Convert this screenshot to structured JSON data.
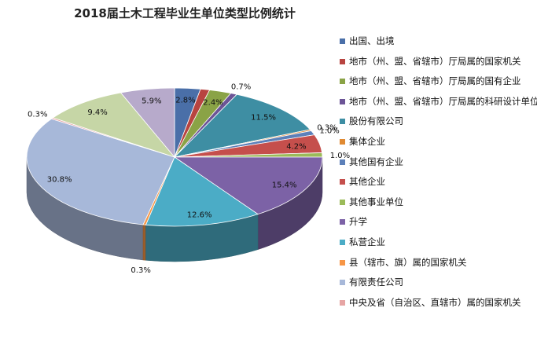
{
  "chart_data": {
    "type": "pie",
    "title": "2018届土木工程毕业生单位类型比例统计",
    "legend_position": "right",
    "slices": [
      {
        "name": "出国、出境",
        "value": 2.8,
        "label": "2.8%",
        "color": "#4a6fa8"
      },
      {
        "name": "地市（州、盟、省辖市）厅局属的国家机关",
        "value": 1.0,
        "label": "",
        "color": "#b84440"
      },
      {
        "name": "地市（州、盟、省辖市）厅局属的国有企业",
        "value": 2.4,
        "label": "2.4%",
        "color": "#8aa346"
      },
      {
        "name": "地市（州、盟、省辖市）厅局属的科研设计单位",
        "value": 0.7,
        "label": "0.7%",
        "color": "#6c5496"
      },
      {
        "name": "股份有限公司",
        "value": 11.5,
        "label": "11.5%",
        "color": "#3e8ea3"
      },
      {
        "name": "集体企业",
        "value": 0.3,
        "label": "0.3%",
        "color": "#e08a32"
      },
      {
        "name": "其他国有企业",
        "value": 1.0,
        "label": "1.0%",
        "color": "#5c80b9"
      },
      {
        "name": "其他企业",
        "value": 4.2,
        "label": "4.2%",
        "color": "#c54f4c"
      },
      {
        "name": "其他事业单位",
        "value": 1.0,
        "label": "1.0%",
        "color": "#9bbb59"
      },
      {
        "name": "升学",
        "value": 15.4,
        "label": "15.4%",
        "color": "#7c62a6"
      },
      {
        "name": "私营企业",
        "value": 12.6,
        "label": "12.6%",
        "color": "#4bacc6"
      },
      {
        "name": "县（辖市、旗）属的国家机关",
        "value": 0.3,
        "label": "0.3%",
        "color": "#f79646"
      },
      {
        "name": "有限责任公司",
        "value": 30.8,
        "label": "30.8%",
        "color": "#a7b8d9"
      },
      {
        "name": "中央及省（自治区、直辖市）属的国家机关",
        "value": 0.3,
        "label": "0.3%",
        "color": "#e6a5a4"
      },
      {
        "name": "",
        "value": 9.4,
        "label": "9.4%",
        "color": "#c6d6a6"
      },
      {
        "name": "",
        "value": 5.9,
        "label": "5.9%",
        "color": "#b7aacb"
      }
    ]
  }
}
